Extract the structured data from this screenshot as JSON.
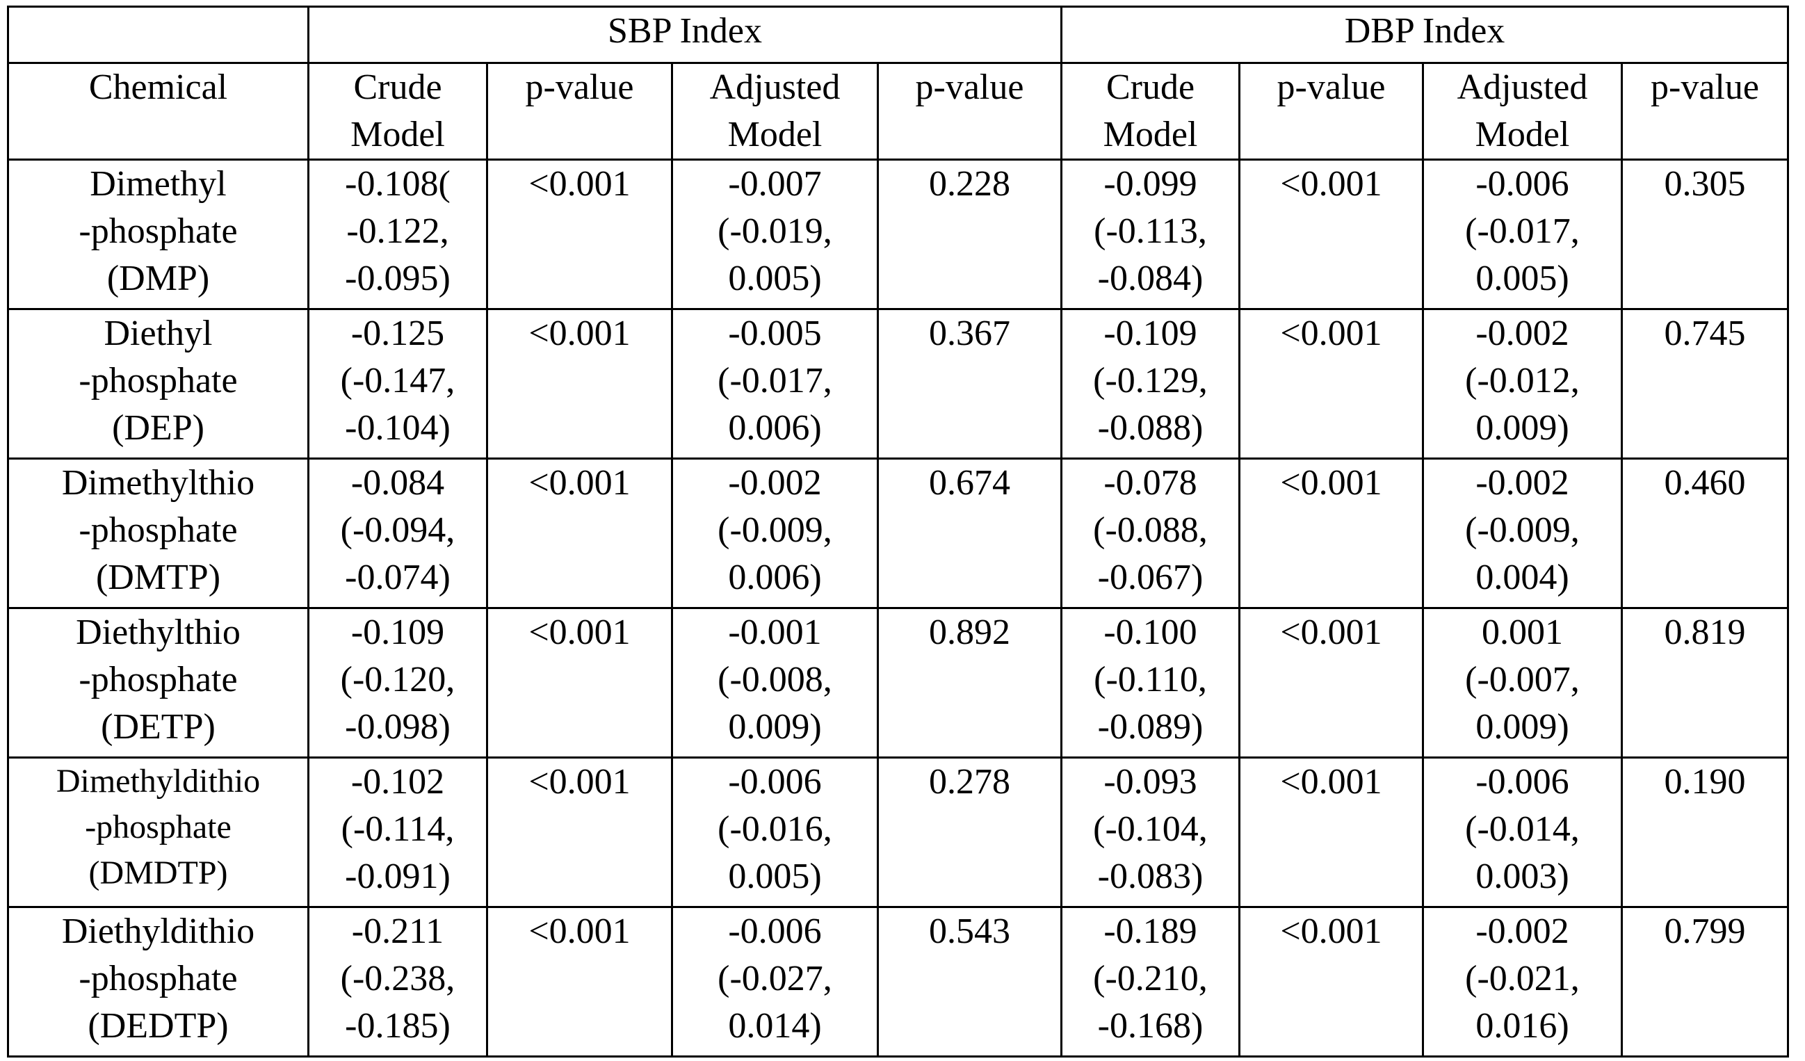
{
  "table": {
    "group_headers": {
      "sbp": "SBP Index",
      "dbp": "DBP Index"
    },
    "column_headers": {
      "chemical": "Chemical",
      "sbp_crude": "Crude\nModel",
      "sbp_p1": "p-value",
      "sbp_adjusted": "Adjusted\nModel",
      "sbp_p2": "p-value",
      "dbp_crude": "Crude\nModel",
      "dbp_p1": "p-value",
      "dbp_adjusted": "Adjusted\nModel",
      "dbp_p2": "p-value"
    },
    "rows": [
      {
        "chemical": "Dimethyl\n-phosphate\n(DMP)",
        "sbp_crude": "-0.108(\n-0.122,\n-0.095)",
        "sbp_crude_p": "<0.001",
        "sbp_adjusted": "-0.007\n(-0.019,\n0.005)",
        "sbp_adjusted_p": "0.228",
        "dbp_crude": "-0.099\n(-0.113,\n-0.084)",
        "dbp_crude_p": "<0.001",
        "dbp_adjusted": "-0.006\n(-0.017,\n0.005)",
        "dbp_adjusted_p": "0.305"
      },
      {
        "chemical": "Diethyl\n-phosphate\n(DEP)",
        "sbp_crude": "-0.125\n(-0.147,\n-0.104)",
        "sbp_crude_p": "<0.001",
        "sbp_adjusted": "-0.005\n(-0.017,\n0.006)",
        "sbp_adjusted_p": "0.367",
        "dbp_crude": "-0.109\n(-0.129,\n-0.088)",
        "dbp_crude_p": "<0.001",
        "dbp_adjusted": "-0.002\n(-0.012,\n0.009)",
        "dbp_adjusted_p": "0.745"
      },
      {
        "chemical": "Dimethylthio\n-phosphate\n(DMTP)",
        "sbp_crude": "-0.084\n(-0.094,\n-0.074)",
        "sbp_crude_p": "<0.001",
        "sbp_adjusted": "-0.002\n(-0.009,\n0.006)",
        "sbp_adjusted_p": "0.674",
        "dbp_crude": "-0.078\n(-0.088,\n-0.067)",
        "dbp_crude_p": "<0.001",
        "dbp_adjusted": "-0.002\n(-0.009,\n0.004)",
        "dbp_adjusted_p": "0.460"
      },
      {
        "chemical": "Diethylthio\n-phosphate\n(DETP)",
        "sbp_crude": "-0.109\n(-0.120,\n-0.098)",
        "sbp_crude_p": "<0.001",
        "sbp_adjusted": "-0.001\n(-0.008,\n0.009)",
        "sbp_adjusted_p": "0.892",
        "dbp_crude": "-0.100\n(-0.110,\n-0.089)",
        "dbp_crude_p": "<0.001",
        "dbp_adjusted": "0.001\n(-0.007,\n0.009)",
        "dbp_adjusted_p": "0.819"
      },
      {
        "chemical": "Dimethyldithio\n-phosphate\n(DMDTP)",
        "sbp_crude": "-0.102\n(-0.114,\n-0.091)",
        "sbp_crude_p": "<0.001",
        "sbp_adjusted": "-0.006\n(-0.016,\n0.005)",
        "sbp_adjusted_p": "0.278",
        "dbp_crude": "-0.093\n(-0.104,\n-0.083)",
        "dbp_crude_p": "<0.001",
        "dbp_adjusted": "-0.006\n(-0.014,\n0.003)",
        "dbp_adjusted_p": "0.190"
      },
      {
        "chemical": "Diethyldithio\n-phosphate\n(DEDTP)",
        "sbp_crude": "-0.211\n(-0.238,\n-0.185)",
        "sbp_crude_p": "<0.001",
        "sbp_adjusted": "-0.006\n(-0.027,\n0.014)",
        "sbp_adjusted_p": "0.543",
        "dbp_crude": "-0.189\n(-0.210,\n-0.168)",
        "dbp_crude_p": "<0.001",
        "dbp_adjusted": "-0.002\n(-0.021,\n0.016)",
        "dbp_adjusted_p": "0.799"
      }
    ]
  }
}
